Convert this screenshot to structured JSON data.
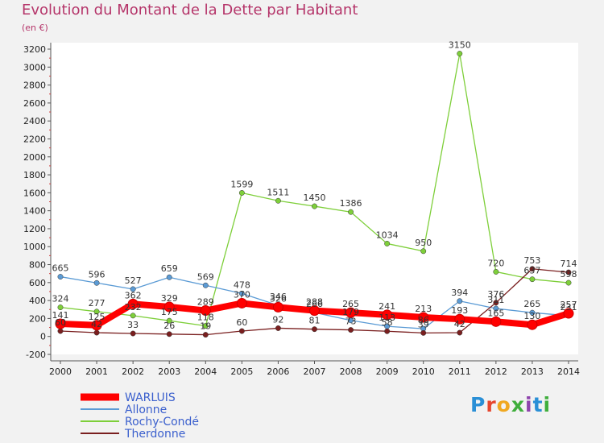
{
  "header": {
    "title": "Evolution du Montant de la Dette par Habitant",
    "subtitle": "(en €)"
  },
  "logo": {
    "letters": [
      "P",
      "r",
      "o",
      "x",
      "i",
      "t",
      "i"
    ],
    "colors": [
      "#2a8fd6",
      "#e6462e",
      "#f0a820",
      "#3fae3c",
      "#8e44ad",
      "#2a8fd6",
      "#3fae3c"
    ]
  },
  "chart_data": {
    "type": "line",
    "title": "Evolution du Montant de la Dette par Habitant",
    "ylabel": "(en €)",
    "xlabel": "",
    "ylim": [
      -200,
      3200
    ],
    "yticks": [
      -200,
      0,
      200,
      400,
      600,
      800,
      1000,
      1200,
      1400,
      1600,
      1800,
      2000,
      2200,
      2400,
      2600,
      2800,
      3000,
      3200
    ],
    "categories": [
      "2000",
      "2001",
      "2002",
      "2003",
      "2004",
      "2005",
      "2006",
      "2007",
      "2008",
      "2009",
      "2010",
      "2011",
      "2012",
      "2013",
      "2014"
    ],
    "grid": false,
    "legend_position": "bottom-left",
    "series": [
      {
        "name": "WARLUIS",
        "color": "#ff0000",
        "values": [
          141,
          125,
          362,
          329,
          289,
          370,
          326,
          288,
          265,
          241,
          213,
          193,
          165,
          130,
          257
        ]
      },
      {
        "name": "Allonne",
        "color": "#5b9bd5",
        "values": [
          665,
          596,
          527,
          659,
          569,
          478,
          346,
          266,
          179,
          113,
          86,
          394,
          311,
          265,
          231
        ]
      },
      {
        "name": "Rochy-Condé",
        "color": "#7ecf3a",
        "values": [
          324,
          277,
          232,
          175,
          118,
          1599,
          1511,
          1450,
          1386,
          1034,
          950,
          3150,
          720,
          637,
          598
        ]
      },
      {
        "name": "Therdonne",
        "color": "#7a1f1f",
        "values": [
          60,
          42,
          33,
          26,
          19,
          60,
          92,
          81,
          73,
          58,
          39,
          42,
          376,
          753,
          714
        ]
      }
    ]
  }
}
